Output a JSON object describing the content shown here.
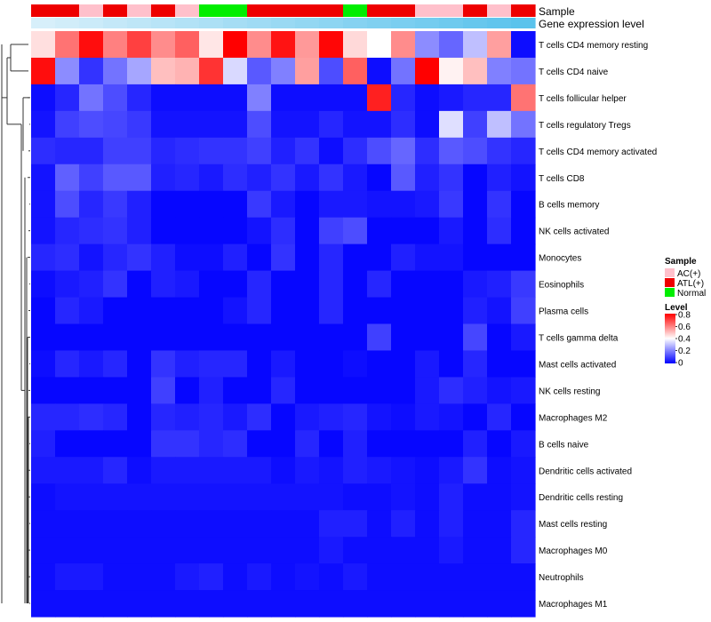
{
  "chart_data": {
    "type": "heatmap",
    "title": "",
    "annotation_tracks": [
      {
        "name": "Sample",
        "label": "Sample"
      },
      {
        "name": "Gene expression level",
        "label": "Gene expression level"
      }
    ],
    "sample_legend": {
      "title": "Sample",
      "entries": [
        {
          "label": "AC(+)",
          "color": "#ffc0cb"
        },
        {
          "label": "ATL(+)",
          "color": "#ee0000"
        },
        {
          "label": "Normal",
          "color": "#00ee00"
        }
      ]
    },
    "level_legend": {
      "title": "Level",
      "ticks": [
        "0.8",
        "0.6",
        "0.4",
        "0.2",
        "0"
      ],
      "range": [
        0,
        0.8
      ],
      "colors": [
        "#0000ff",
        "#ffffff",
        "#ff0000"
      ]
    },
    "sample_groups": [
      "ATL(+)",
      "ATL(+)",
      "AC(+)",
      "ATL(+)",
      "AC(+)",
      "ATL(+)",
      "AC(+)",
      "Normal",
      "Normal",
      "ATL(+)",
      "ATL(+)",
      "ATL(+)",
      "ATL(+)",
      "Normal",
      "ATL(+)",
      "ATL(+)",
      "AC(+)",
      "AC(+)",
      "ATL(+)",
      "AC(+)",
      "ATL(+)"
    ],
    "expression_gradient": [
      "#d7effa",
      "#5bc3ec"
    ],
    "rows": [
      "T cells CD4 memory resting",
      "T cells CD4 naive",
      "T cells follicular helper",
      "T cells regulatory  Tregs",
      "T cells CD4 memory activated",
      "T cells CD8",
      "B cells memory",
      "NK cells activated",
      "Monocytes",
      "Eosinophils",
      "Plasma cells",
      "T cells gamma delta",
      "Mast cells activated",
      "NK cells resting",
      "Macrophages M2",
      "B cells naive",
      "Dendritic cells activated",
      "Dendritic cells resting",
      "Mast cells resting",
      "Macrophages M0",
      "Neutrophils",
      "Macrophages M1"
    ],
    "values": [
      [
        0.45,
        0.62,
        0.78,
        0.6,
        0.7,
        0.58,
        0.65,
        0.44,
        0.8,
        0.58,
        0.77,
        0.56,
        0.79,
        0.46,
        0.4,
        0.58,
        0.22,
        0.16,
        0.3,
        0.55,
        0.02
      ],
      [
        0.78,
        0.22,
        0.08,
        0.18,
        0.26,
        0.5,
        0.52,
        0.72,
        0.34,
        0.14,
        0.2,
        0.55,
        0.12,
        0.65,
        0.02,
        0.18,
        0.8,
        0.42,
        0.5,
        0.2,
        0.18
      ],
      [
        0.02,
        0.06,
        0.18,
        0.12,
        0.06,
        0.02,
        0.02,
        0.02,
        0.02,
        0.2,
        0.02,
        0.02,
        0.02,
        0.02,
        0.75,
        0.06,
        0.02,
        0.04,
        0.06,
        0.06,
        0.62
      ],
      [
        0.03,
        0.1,
        0.12,
        0.11,
        0.09,
        0.03,
        0.03,
        0.03,
        0.03,
        0.12,
        0.03,
        0.03,
        0.06,
        0.03,
        0.03,
        0.07,
        0.02,
        0.35,
        0.1,
        0.3,
        0.18
      ],
      [
        0.07,
        0.06,
        0.06,
        0.1,
        0.1,
        0.06,
        0.07,
        0.08,
        0.08,
        0.1,
        0.05,
        0.08,
        0.02,
        0.07,
        0.12,
        0.16,
        0.07,
        0.14,
        0.12,
        0.08,
        0.06
      ],
      [
        0.03,
        0.15,
        0.1,
        0.14,
        0.14,
        0.05,
        0.06,
        0.04,
        0.07,
        0.05,
        0.08,
        0.04,
        0.08,
        0.04,
        0.01,
        0.14,
        0.05,
        0.08,
        0.01,
        0.05,
        0.03
      ],
      [
        0.03,
        0.12,
        0.06,
        0.09,
        0.05,
        0.01,
        0.01,
        0.01,
        0.01,
        0.09,
        0.04,
        0.01,
        0.04,
        0.04,
        0.03,
        0.03,
        0.04,
        0.09,
        0.01,
        0.08,
        0.01
      ],
      [
        0.03,
        0.06,
        0.07,
        0.08,
        0.05,
        0.01,
        0.01,
        0.01,
        0.01,
        0.03,
        0.07,
        0.01,
        0.1,
        0.12,
        0.01,
        0.01,
        0.01,
        0.04,
        0.01,
        0.07,
        0.01
      ],
      [
        0.06,
        0.07,
        0.03,
        0.06,
        0.08,
        0.05,
        0.02,
        0.02,
        0.05,
        0.01,
        0.08,
        0.01,
        0.06,
        0.01,
        0.01,
        0.05,
        0.03,
        0.03,
        0.01,
        0.01,
        0.01
      ],
      [
        0.02,
        0.04,
        0.05,
        0.08,
        0.01,
        0.05,
        0.04,
        0.01,
        0.01,
        0.06,
        0.01,
        0.01,
        0.06,
        0.01,
        0.06,
        0.01,
        0.01,
        0.01,
        0.04,
        0.05,
        0.09
      ],
      [
        0.01,
        0.06,
        0.04,
        0.01,
        0.01,
        0.01,
        0.01,
        0.01,
        0.03,
        0.06,
        0.01,
        0.01,
        0.06,
        0.01,
        0.01,
        0.01,
        0.01,
        0.01,
        0.05,
        0.03,
        0.1
      ],
      [
        0.01,
        0.01,
        0.01,
        0.01,
        0.01,
        0.01,
        0.01,
        0.01,
        0.01,
        0.01,
        0.01,
        0.01,
        0.01,
        0.01,
        0.1,
        0.01,
        0.01,
        0.01,
        0.11,
        0.01,
        0.04
      ],
      [
        0.02,
        0.06,
        0.04,
        0.06,
        0.01,
        0.08,
        0.05,
        0.06,
        0.06,
        0.01,
        0.04,
        0.01,
        0.01,
        0.02,
        0.01,
        0.01,
        0.04,
        0.01,
        0.06,
        0.01,
        0.01
      ],
      [
        0.01,
        0.01,
        0.01,
        0.01,
        0.01,
        0.1,
        0.01,
        0.05,
        0.01,
        0.01,
        0.06,
        0.01,
        0.01,
        0.01,
        0.01,
        0.01,
        0.04,
        0.07,
        0.05,
        0.03,
        0.04
      ],
      [
        0.06,
        0.06,
        0.07,
        0.06,
        0.01,
        0.06,
        0.05,
        0.06,
        0.04,
        0.07,
        0.01,
        0.04,
        0.05,
        0.06,
        0.03,
        0.02,
        0.04,
        0.03,
        0.01,
        0.06,
        0.01
      ],
      [
        0.05,
        0.01,
        0.01,
        0.01,
        0.01,
        0.08,
        0.08,
        0.06,
        0.07,
        0.01,
        0.01,
        0.06,
        0.01,
        0.05,
        0.01,
        0.01,
        0.01,
        0.01,
        0.05,
        0.01,
        0.04
      ],
      [
        0.04,
        0.04,
        0.04,
        0.06,
        0.02,
        0.04,
        0.04,
        0.04,
        0.04,
        0.04,
        0.02,
        0.04,
        0.03,
        0.05,
        0.04,
        0.03,
        0.02,
        0.04,
        0.08,
        0.02,
        0.03
      ],
      [
        0.02,
        0.03,
        0.03,
        0.03,
        0.03,
        0.03,
        0.03,
        0.03,
        0.03,
        0.03,
        0.03,
        0.03,
        0.03,
        0.02,
        0.02,
        0.03,
        0.02,
        0.05,
        0.02,
        0.02,
        0.03
      ],
      [
        0.02,
        0.02,
        0.02,
        0.02,
        0.02,
        0.02,
        0.02,
        0.02,
        0.02,
        0.02,
        0.02,
        0.02,
        0.05,
        0.05,
        0.02,
        0.05,
        0.02,
        0.05,
        0.02,
        0.02,
        0.06
      ],
      [
        0.02,
        0.02,
        0.02,
        0.02,
        0.02,
        0.02,
        0.02,
        0.02,
        0.02,
        0.02,
        0.02,
        0.02,
        0.04,
        0.02,
        0.02,
        0.02,
        0.02,
        0.04,
        0.02,
        0.02,
        0.06
      ],
      [
        0.02,
        0.04,
        0.04,
        0.02,
        0.02,
        0.02,
        0.04,
        0.05,
        0.02,
        0.04,
        0.02,
        0.03,
        0.02,
        0.04,
        0.02,
        0.02,
        0.02,
        0.02,
        0.02,
        0.02,
        0.02
      ],
      [
        0.02,
        0.02,
        0.02,
        0.02,
        0.02,
        0.02,
        0.02,
        0.02,
        0.02,
        0.02,
        0.02,
        0.02,
        0.02,
        0.02,
        0.02,
        0.02,
        0.02,
        0.02,
        0.02,
        0.02,
        0.02
      ]
    ]
  }
}
